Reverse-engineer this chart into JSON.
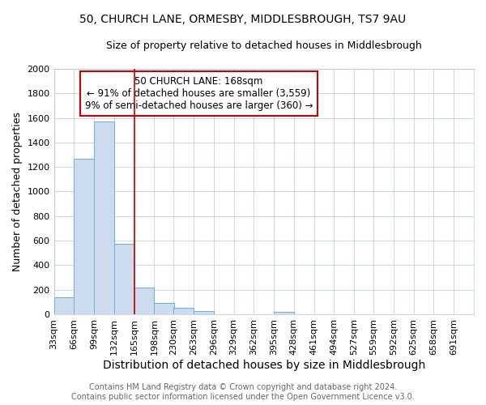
{
  "title1": "50, CHURCH LANE, ORMESBY, MIDDLESBROUGH, TS7 9AU",
  "title2": "Size of property relative to detached houses in Middlesbrough",
  "xlabel": "Distribution of detached houses by size in Middlesbrough",
  "ylabel": "Number of detached properties",
  "annotation_title": "50 CHURCH LANE: 168sqm",
  "annotation_line1": "← 91% of detached houses are smaller (3,559)",
  "annotation_line2": "9% of semi-detached houses are larger (360) →",
  "footer1": "Contains HM Land Registry data © Crown copyright and database right 2024.",
  "footer2": "Contains public sector information licensed under the Open Government Licence v3.0.",
  "bar_color": "#ccdcee",
  "bar_edge_color": "#6baed6",
  "vline_color": "#cc0000",
  "vline_x": 165,
  "annotation_box_color": "#ffffff",
  "annotation_box_edge": "#cc0000",
  "categories": [
    33,
    66,
    99,
    132,
    165,
    198,
    230,
    263,
    296,
    329,
    362,
    395,
    428,
    461,
    494,
    527,
    559,
    592,
    625,
    658,
    691
  ],
  "values": [
    140,
    1265,
    1570,
    575,
    215,
    95,
    55,
    25,
    0,
    0,
    0,
    20,
    0,
    0,
    0,
    0,
    0,
    0,
    0,
    0,
    0
  ],
  "bin_width": 33,
  "ylim": [
    0,
    2000
  ],
  "yticks": [
    0,
    200,
    400,
    600,
    800,
    1000,
    1200,
    1400,
    1600,
    1800,
    2000
  ],
  "title1_fontsize": 10,
  "title2_fontsize": 9,
  "xlabel_fontsize": 10,
  "ylabel_fontsize": 9,
  "tick_fontsize": 8,
  "annotation_fontsize": 8.5,
  "footer_fontsize": 7
}
